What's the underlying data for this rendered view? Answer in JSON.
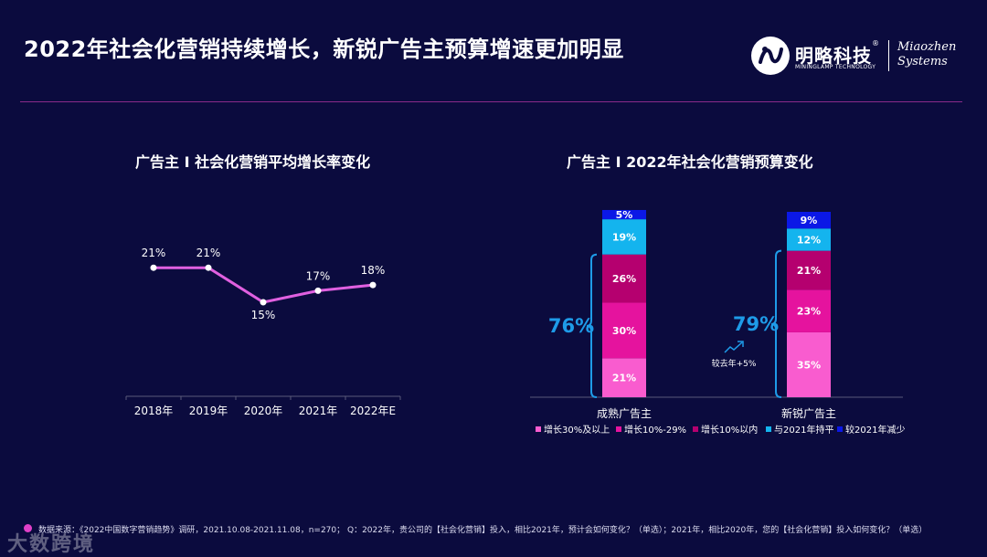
{
  "page": {
    "title": "2022年社会化营销持续增长，新锐广告主预算增速更加明显",
    "logo_cn": "明略科技",
    "logo_reg": "®",
    "logo_en": "MININGLAMP TECHNOLOGY",
    "logo_mz_1": "Miaozhen",
    "logo_mz_2": "Systems",
    "footer": "数据来源：《2022中国数字营销趋势》调研，2021.10.08-2021.11.08，n=270；  Q：2022年，贵公司的【社会化营销】投入，相比2021年，预计会如何变化？（单选）；2021年，相比2020年，您的【社会化营销】投入如何变化？（单选）",
    "watermark": "大数跨境"
  },
  "colors": {
    "background": "#0b0b3e",
    "line": "#e060e0",
    "accent_blue": "#1e9be8",
    "seg_30plus": "#f95ccf",
    "seg_10_29": "#e5139e",
    "seg_within10": "#b5006f",
    "seg_flat": "#14b4ee",
    "seg_decrease": "#0b18e6"
  },
  "chart_data": [
    {
      "type": "line",
      "title": "广告主 I 社会化营销平均增长率变化",
      "categories": [
        "2018年",
        "2019年",
        "2020年",
        "2021年",
        "2022年E"
      ],
      "values": [
        21,
        21,
        15,
        17,
        18
      ],
      "labels": [
        "21%",
        "21%",
        "15%",
        "17%",
        "18%"
      ],
      "ylim": [
        0,
        30
      ]
    },
    {
      "type": "bar",
      "stacked": true,
      "title": "广告主 I 2022年社会化营销预算变化",
      "categories": [
        "成熟广告主",
        "新锐广告主"
      ],
      "series": [
        {
          "name": "增长30%及以上",
          "values": [
            21,
            35
          ],
          "labels": [
            "21%",
            "35%"
          ],
          "color_key": "seg_30plus"
        },
        {
          "name": "增长10%-29%",
          "values": [
            30,
            23
          ],
          "labels": [
            "30%",
            "23%"
          ],
          "color_key": "seg_10_29"
        },
        {
          "name": "增长10%以内",
          "values": [
            26,
            21
          ],
          "labels": [
            "26%",
            "21%"
          ],
          "color_key": "seg_within10"
        },
        {
          "name": "与2021年持平",
          "values": [
            19,
            12
          ],
          "labels": [
            "19%",
            "12%"
          ],
          "color_key": "seg_flat"
        },
        {
          "name": "较2021年减少",
          "values": [
            5,
            9
          ],
          "labels": [
            "5%",
            "9%"
          ],
          "color_key": "seg_decrease"
        }
      ],
      "growth_totals": [
        "76%",
        "79%"
      ],
      "annotation": "较去年+5%",
      "ylim": [
        0,
        100
      ]
    }
  ]
}
